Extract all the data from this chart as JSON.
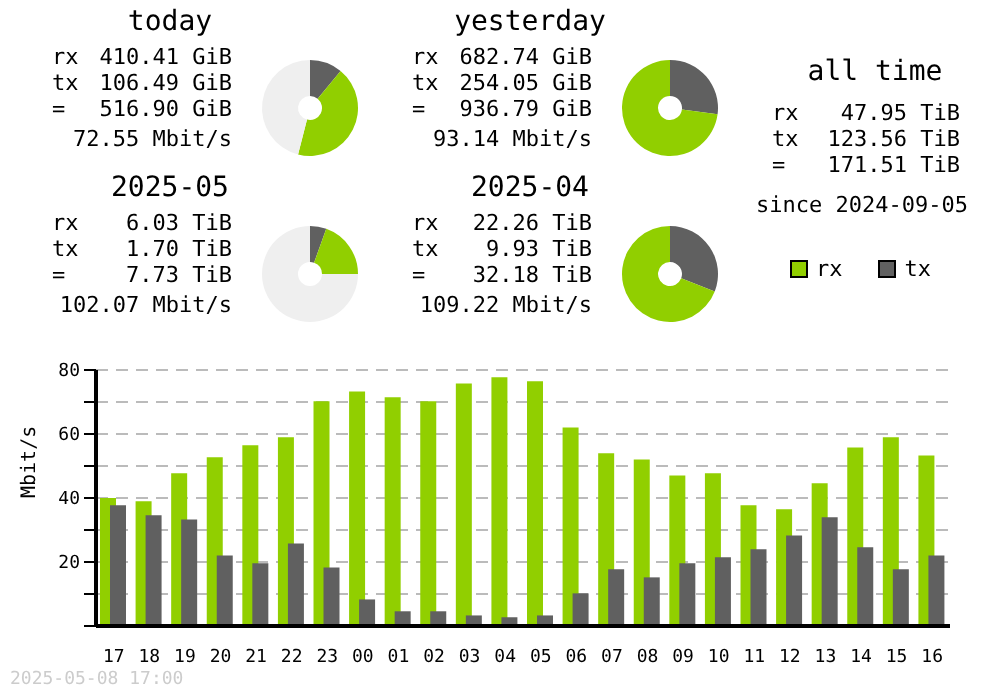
{
  "chart_data": [
    {
      "type": "donut",
      "title": "today",
      "categories": [
        null,
        null,
        null
      ],
      "values": [
        11,
        43,
        46
      ],
      "colors": [
        "#606060",
        "#91cf00",
        "#efefef"
      ],
      "annotations": [
        "rx 410.41 GiB",
        "tx 106.49 GiB",
        "= 516.90 GiB",
        "72.55 Mbit/s"
      ]
    },
    {
      "type": "donut",
      "title": "yesterday",
      "categories": [
        null,
        null
      ],
      "values": [
        27.1,
        72.9
      ],
      "colors": [
        "#606060",
        "#91cf00"
      ],
      "annotations": [
        "rx 682.74 GiB",
        "tx 254.05 GiB",
        "= 936.79 GiB",
        "93.14 Mbit/s"
      ]
    },
    {
      "type": "donut",
      "title": "2025-05",
      "categories": [
        null,
        null,
        null
      ],
      "values": [
        5.5,
        19.5,
        75
      ],
      "colors": [
        "#606060",
        "#91cf00",
        "#efefef"
      ],
      "annotations": [
        "rx 6.03 TiB",
        "tx 1.70 TiB",
        "= 7.73 TiB",
        "102.07 Mbit/s"
      ]
    },
    {
      "type": "donut",
      "title": "2025-04",
      "categories": [
        null,
        null
      ],
      "values": [
        30.9,
        69.1
      ],
      "colors": [
        "#606060",
        "#91cf00"
      ],
      "annotations": [
        "rx 22.26 TiB",
        "tx 9.93 TiB",
        "= 32.18 TiB",
        "109.22 Mbit/s"
      ]
    },
    {
      "type": "other",
      "title": "all time",
      "annotations": [
        "rx 47.95 TiB",
        "tx 123.56 TiB",
        "= 171.51 TiB",
        "since 2024-09-05"
      ]
    },
    {
      "type": "bar",
      "ylabel": "Mbit/s",
      "categories": [
        "17",
        "18",
        "19",
        "20",
        "21",
        "22",
        "23",
        "00",
        "01",
        "02",
        "03",
        "04",
        "05",
        "06",
        "07",
        "08",
        "09",
        "10",
        "11",
        "12",
        "13",
        "14",
        "15",
        "16"
      ],
      "series": [
        {
          "name": "rx",
          "color": "#91cf00",
          "values": [
            40,
            39,
            47.7,
            52.7,
            56.5,
            59,
            70.2,
            73.3,
            71.5,
            70.2,
            75.8,
            77.7,
            76.5,
            62,
            54,
            52,
            47,
            47.7,
            37.7,
            36.5,
            44.6,
            55.8,
            59,
            53.3
          ]
        },
        {
          "name": "tx",
          "color": "#606060",
          "values": [
            37.7,
            34.6,
            33.3,
            22,
            19.6,
            25.8,
            18.3,
            8.3,
            4.6,
            4.6,
            3.3,
            2.7,
            3.3,
            10.2,
            17.7,
            15.2,
            19.6,
            21.5,
            24,
            28.3,
            34,
            24.6,
            17.7,
            22
          ]
        }
      ],
      "ylim": [
        0,
        80
      ],
      "yticks": [
        {
          "value": 0,
          "label": null
        },
        {
          "value": 10,
          "label": null
        },
        20,
        {
          "value": 30,
          "label": null
        },
        40,
        {
          "value": 50,
          "label": null
        },
        60,
        {
          "value": 70,
          "label": null
        },
        80
      ],
      "grid": "y",
      "legend": "top right",
      "annotations": [
        "2025-05-08 17:00"
      ]
    }
  ]
}
